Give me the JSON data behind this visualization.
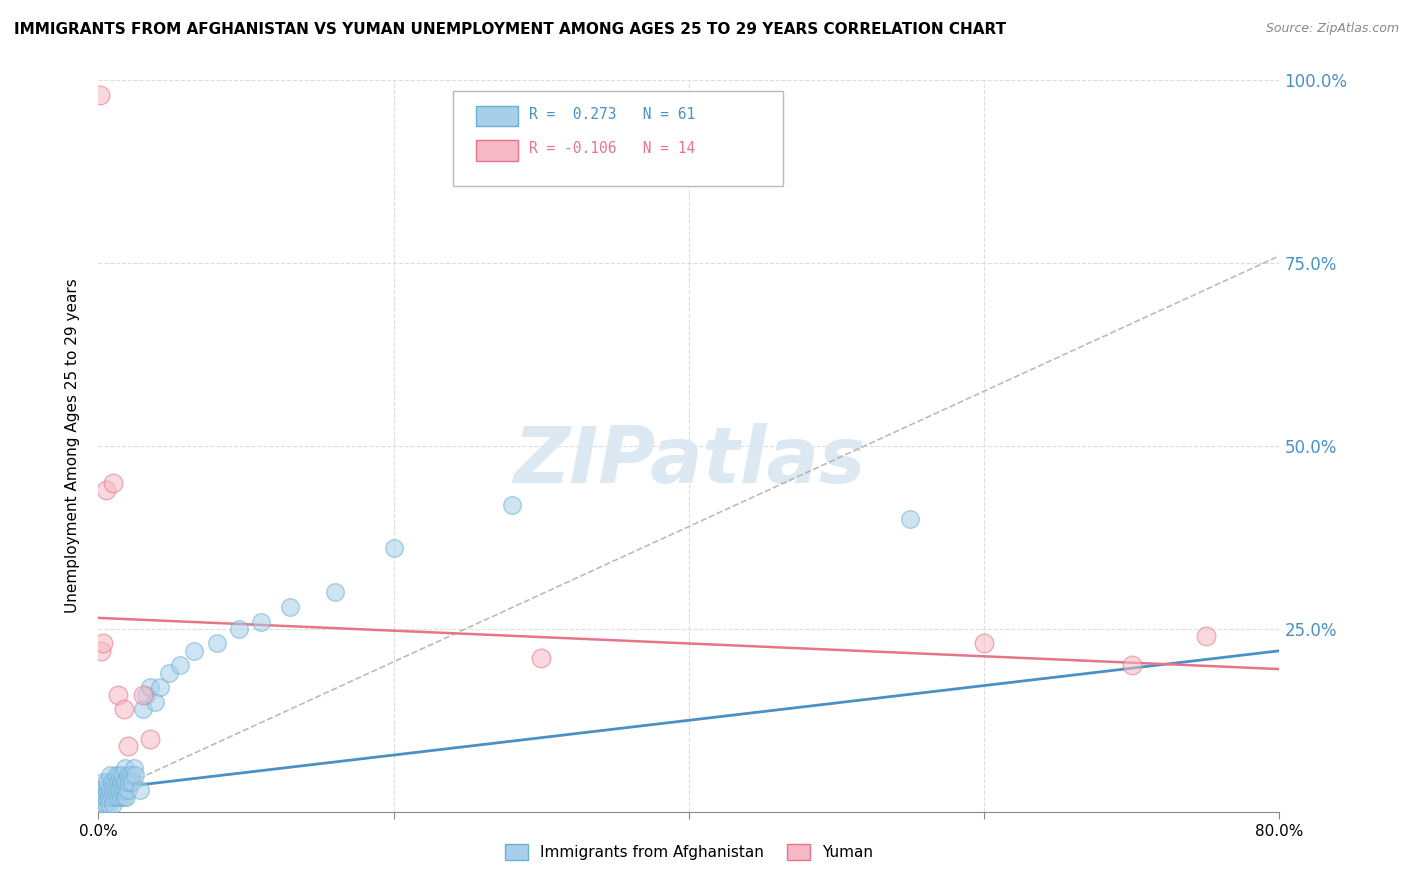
{
  "title": "IMMIGRANTS FROM AFGHANISTAN VS YUMAN UNEMPLOYMENT AMONG AGES 25 TO 29 YEARS CORRELATION CHART",
  "source": "Source: ZipAtlas.com",
  "ylabel": "Unemployment Among Ages 25 to 29 years",
  "xlim": [
    0.0,
    0.8
  ],
  "ylim": [
    0.0,
    1.0
  ],
  "yticks": [
    0.0,
    0.25,
    0.5,
    0.75,
    1.0
  ],
  "yticklabels": [
    "",
    "25.0%",
    "50.0%",
    "75.0%",
    "100.0%"
  ],
  "legend_blue_r": "R =  0.273",
  "legend_blue_n": "N = 61",
  "legend_pink_r": "R = -0.106",
  "legend_pink_n": "N = 14",
  "blue_color": "#A8CFEA",
  "pink_color": "#F5B8C4",
  "blue_edge": "#6AAFD4",
  "pink_edge": "#E8748A",
  "trend_blue_color": "#4A90C4",
  "trend_pink_color": "#E8748A",
  "dashed_line_color": "#AAAAAA",
  "axis_label_color": "#4A90C4",
  "grid_color": "#DDDDDD",
  "watermark_color": "#DCE9F2",
  "blue_scatter_x": [
    0.001,
    0.002,
    0.002,
    0.003,
    0.003,
    0.004,
    0.004,
    0.005,
    0.005,
    0.006,
    0.006,
    0.007,
    0.007,
    0.008,
    0.008,
    0.009,
    0.009,
    0.01,
    0.01,
    0.011,
    0.011,
    0.012,
    0.012,
    0.013,
    0.013,
    0.014,
    0.014,
    0.015,
    0.015,
    0.016,
    0.016,
    0.017,
    0.017,
    0.018,
    0.018,
    0.019,
    0.019,
    0.02,
    0.02,
    0.021,
    0.022,
    0.023,
    0.024,
    0.025,
    0.028,
    0.03,
    0.032,
    0.035,
    0.038,
    0.042,
    0.048,
    0.055,
    0.065,
    0.08,
    0.095,
    0.11,
    0.13,
    0.16,
    0.2,
    0.28,
    0.55
  ],
  "blue_scatter_y": [
    0.01,
    0.02,
    0.03,
    0.01,
    0.04,
    0.02,
    0.03,
    0.01,
    0.02,
    0.03,
    0.04,
    0.01,
    0.02,
    0.03,
    0.05,
    0.02,
    0.04,
    0.01,
    0.03,
    0.02,
    0.04,
    0.03,
    0.05,
    0.02,
    0.04,
    0.03,
    0.05,
    0.02,
    0.04,
    0.03,
    0.05,
    0.02,
    0.04,
    0.03,
    0.06,
    0.02,
    0.04,
    0.03,
    0.05,
    0.04,
    0.05,
    0.04,
    0.06,
    0.05,
    0.03,
    0.14,
    0.16,
    0.17,
    0.15,
    0.17,
    0.19,
    0.2,
    0.22,
    0.23,
    0.25,
    0.26,
    0.28,
    0.3,
    0.36,
    0.42,
    0.4
  ],
  "pink_scatter_x": [
    0.002,
    0.003,
    0.005,
    0.01,
    0.013,
    0.017,
    0.02,
    0.03,
    0.035,
    0.3,
    0.6,
    0.7,
    0.75,
    0.001
  ],
  "pink_scatter_y": [
    0.22,
    0.23,
    0.44,
    0.45,
    0.16,
    0.14,
    0.09,
    0.16,
    0.1,
    0.21,
    0.23,
    0.2,
    0.24,
    0.98
  ],
  "blue_trend_x": [
    0.0,
    0.8
  ],
  "blue_trend_y": [
    0.03,
    0.22
  ],
  "dashed_trend_x": [
    0.0,
    0.8
  ],
  "dashed_trend_y": [
    0.02,
    0.76
  ],
  "pink_trend_x": [
    0.0,
    0.8
  ],
  "pink_trend_y": [
    0.265,
    0.195
  ]
}
